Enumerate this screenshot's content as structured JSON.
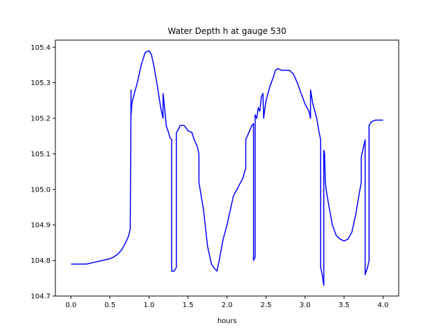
{
  "chart_data": {
    "type": "line",
    "title": "Water Depth h at gauge 530",
    "xlabel": "hours",
    "ylabel": "",
    "xlim": [
      -0.2,
      4.2
    ],
    "ylim": [
      104.7,
      105.42
    ],
    "grid": false,
    "x_ticks": [
      0.0,
      0.5,
      1.0,
      1.5,
      2.0,
      2.5,
      3.0,
      3.5,
      4.0
    ],
    "x_tick_labels": [
      "0.0",
      "0.5",
      "1.0",
      "1.5",
      "2.0",
      "2.5",
      "3.0",
      "3.5",
      "4.0"
    ],
    "y_ticks": [
      104.7,
      104.8,
      104.9,
      105.0,
      105.1,
      105.2,
      105.3,
      105.4
    ],
    "y_tick_labels": [
      "104.7",
      "104.8",
      "104.9",
      "105.0",
      "105.1",
      "105.2",
      "105.3",
      "105.4"
    ],
    "series": [
      {
        "color": "#0000ff",
        "x": [
          0.0,
          0.2,
          0.3,
          0.4,
          0.5,
          0.55,
          0.6,
          0.65,
          0.7,
          0.74,
          0.76,
          0.77,
          0.77,
          0.78,
          0.8,
          0.85,
          0.9,
          0.95,
          1.0,
          1.03,
          1.06,
          1.1,
          1.15,
          1.18,
          1.18,
          1.2,
          1.22,
          1.25,
          1.27,
          1.29,
          1.29,
          1.32,
          1.35,
          1.35,
          1.38,
          1.4,
          1.45,
          1.5,
          1.55,
          1.58,
          1.62,
          1.64,
          1.64,
          1.7,
          1.75,
          1.8,
          1.83,
          1.85,
          1.87,
          1.9,
          1.95,
          2.0,
          2.05,
          2.08,
          2.1,
          2.13,
          2.15,
          2.2,
          2.24,
          2.24,
          2.28,
          2.32,
          2.34,
          2.34,
          2.36,
          2.36,
          2.38,
          2.4,
          2.42,
          2.44,
          2.46,
          2.47,
          2.48,
          2.5,
          2.55,
          2.6,
          2.62,
          2.65,
          2.7,
          2.75,
          2.8,
          2.85,
          2.9,
          2.95,
          3.0,
          3.05,
          3.07,
          3.07,
          3.1,
          3.15,
          3.18,
          3.2,
          3.2,
          3.22,
          3.24,
          3.24,
          3.25,
          3.26,
          3.27,
          3.3,
          3.35,
          3.4,
          3.45,
          3.5,
          3.55,
          3.6,
          3.65,
          3.68,
          3.72,
          3.72,
          3.75,
          3.77,
          3.77,
          3.8,
          3.82,
          3.82,
          3.85,
          3.9,
          3.95,
          4.0
        ],
        "y": [
          104.79,
          104.79,
          104.795,
          104.8,
          104.805,
          104.81,
          104.818,
          104.83,
          104.85,
          104.87,
          104.89,
          105.28,
          105.21,
          105.24,
          105.26,
          105.3,
          105.35,
          105.385,
          105.39,
          105.38,
          105.35,
          105.3,
          105.23,
          105.2,
          105.27,
          105.23,
          105.18,
          105.16,
          105.145,
          105.14,
          104.77,
          104.77,
          104.78,
          105.16,
          105.17,
          105.18,
          105.18,
          105.165,
          105.16,
          105.14,
          105.12,
          105.1,
          105.02,
          104.94,
          104.84,
          104.79,
          104.78,
          104.775,
          104.77,
          104.8,
          104.86,
          104.9,
          104.95,
          104.98,
          104.99,
          105.0,
          105.01,
          105.03,
          105.06,
          105.14,
          105.16,
          105.18,
          105.185,
          104.8,
          104.81,
          105.21,
          105.2,
          105.23,
          105.22,
          105.26,
          105.27,
          105.2,
          105.22,
          105.25,
          105.29,
          105.32,
          105.335,
          105.34,
          105.335,
          105.335,
          105.335,
          105.325,
          105.3,
          105.27,
          105.24,
          105.22,
          105.2,
          105.28,
          105.24,
          105.2,
          105.16,
          105.14,
          104.78,
          104.76,
          104.73,
          105.11,
          105.1,
          105.02,
          105.0,
          104.96,
          104.9,
          104.87,
          104.86,
          104.855,
          104.86,
          104.88,
          104.93,
          104.97,
          105.02,
          105.09,
          105.12,
          105.14,
          104.76,
          104.78,
          104.8,
          105.18,
          105.19,
          105.195,
          105.195,
          105.195
        ]
      }
    ]
  }
}
